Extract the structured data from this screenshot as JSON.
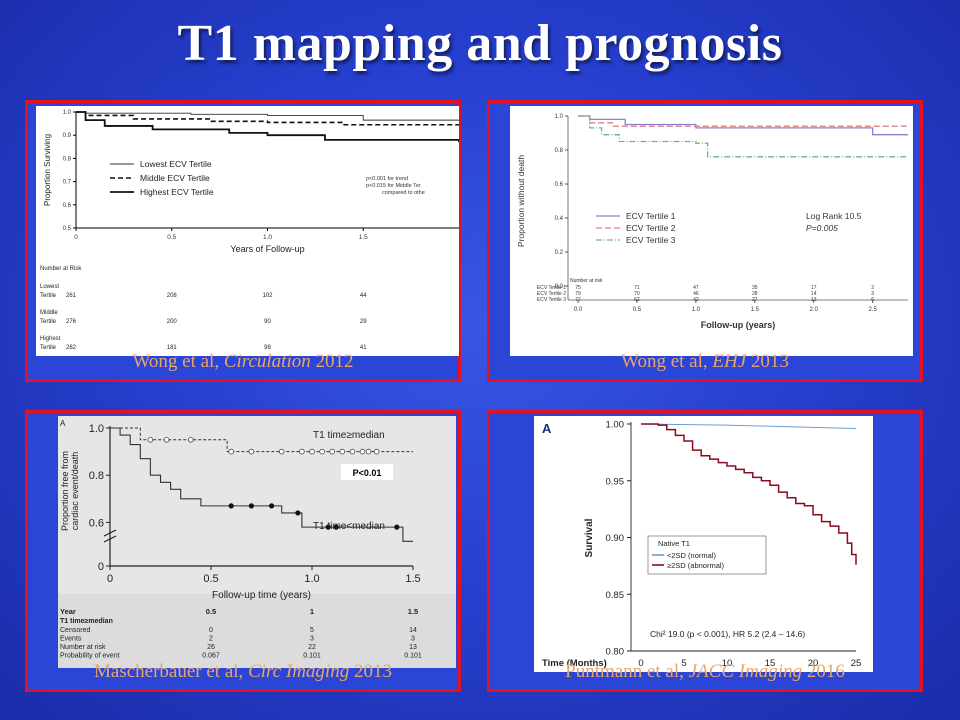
{
  "slide": {
    "title": "T1 mapping and prognosis"
  },
  "captions": [
    {
      "pre": "Wong et al, ",
      "journal": "Circulation",
      "post": " 2012"
    },
    {
      "pre": "Wong et al, ",
      "journal": "EHJ",
      "post": " 2013"
    },
    {
      "pre": "Mascherbauer  et al, ",
      "journal": "Circ Imaging",
      "post": " 2013"
    },
    {
      "pre": "Puntmann et al, ",
      "journal": "JACC Imaging",
      "post": " 2016"
    }
  ],
  "chart_data": [
    {
      "type": "line",
      "ylabel": "Proportion Surviving",
      "xlabel": "Years of Follow-up",
      "xlim": [
        0,
        2
      ],
      "ylim": [
        0.5,
        1.0
      ],
      "xticks": [
        "0",
        "0.5",
        "1.0",
        "1.5"
      ],
      "yticks": [
        "0.5",
        "0.6",
        "0.7",
        "0.8",
        "0.9",
        "1.0"
      ],
      "series": [
        {
          "name": "Lowest ECV Tertile",
          "style": "thin",
          "x": [
            0,
            0.05,
            0.6,
            1.0,
            1.5,
            2.0
          ],
          "y": [
            1.0,
            0.995,
            0.99,
            0.985,
            0.965,
            0.965
          ]
        },
        {
          "name": "Middle ECV Tertile",
          "style": "dashed",
          "x": [
            0,
            0.05,
            0.3,
            0.7,
            1.0,
            1.4,
            2.0
          ],
          "y": [
            1.0,
            0.985,
            0.97,
            0.96,
            0.955,
            0.945,
            0.945
          ]
        },
        {
          "name": "Highest ECV Tertile",
          "style": "thick",
          "x": [
            0,
            0.05,
            0.15,
            0.4,
            0.8,
            1.0,
            1.3,
            2.0
          ],
          "y": [
            1.0,
            0.965,
            0.94,
            0.925,
            0.91,
            0.9,
            0.88,
            0.87
          ]
        }
      ],
      "annotations": [
        "p<0.001 for trend",
        "p<0.015 for Middle Ter",
        "compared to othe"
      ],
      "risk_table": {
        "title": "Number at Risk",
        "rows": [
          {
            "label1": "Lowest",
            "label2": "Tertile",
            "values": [
              "261",
              "208",
              "102",
              "44"
            ]
          },
          {
            "label1": "Middle",
            "label2": "Tertile",
            "values": [
              "276",
              "200",
              "90",
              "29"
            ]
          },
          {
            "label1": "Highest",
            "label2": "Tertile",
            "values": [
              "262",
              "181",
              "98",
              "41"
            ]
          }
        ]
      }
    },
    {
      "type": "line",
      "ylabel": "Proportion without death",
      "xlabel": "Follow-up (years)",
      "xlim": [
        0,
        2.8
      ],
      "ylim": [
        0,
        1.0
      ],
      "xticks": [
        "0.0",
        "0.5",
        "1.0",
        "1.5",
        "2.0",
        "2.5"
      ],
      "yticks": [
        "0.0",
        "0.2",
        "0.4",
        "0.6",
        "0.8",
        "1.0"
      ],
      "series": [
        {
          "name": "ECV Tertile 1",
          "color": "#8a7fd0",
          "x": [
            0,
            0.1,
            0.4,
            1.0,
            2.5,
            2.8
          ],
          "y": [
            1.0,
            0.98,
            0.95,
            0.93,
            0.89,
            0.89
          ]
        },
        {
          "name": "ECV Tertile 2",
          "color": "#e08080",
          "x": [
            0,
            0.1,
            0.3,
            2.8
          ],
          "y": [
            1.0,
            0.96,
            0.94,
            0.94
          ]
        },
        {
          "name": "ECV Tertile 3",
          "color": "#70b090",
          "x": [
            0,
            0.1,
            0.2,
            0.35,
            1.0,
            1.1,
            2.8
          ],
          "y": [
            1.0,
            0.93,
            0.89,
            0.85,
            0.84,
            0.76,
            0.76
          ]
        }
      ],
      "annotations": [
        "Log Rank 10.5",
        "P=0.005"
      ],
      "risk_table": {
        "title": "Number at risk",
        "rows": [
          {
            "label": "ECV Tertile 1",
            "values": [
              "75",
              "71",
              "47",
              "35",
              "17",
              "2"
            ]
          },
          {
            "label": "ECV Tertile 2",
            "values": [
              "79",
              "70",
              "46",
              "28",
              "14",
              "3"
            ]
          },
          {
            "label": "ECV Tertile 3",
            "values": [
              "77",
              "62",
              "42",
              "27",
              "13",
              "6"
            ]
          }
        ]
      }
    },
    {
      "type": "line",
      "panel_label": "A",
      "ylabel": "Proportion free from cardiac event/death",
      "xlabel": "Follow-up time (years)",
      "xlim": [
        0,
        1.5
      ],
      "ylim": [
        0,
        1.0
      ],
      "xticks": [
        "0",
        "0.5",
        "1.0",
        "1.5"
      ],
      "yticks": [
        "0",
        "0.6",
        "0.8",
        "1.0"
      ],
      "series": [
        {
          "name": "T1 time≥median",
          "style": "dashed",
          "x": [
            0,
            0.1,
            0.15,
            0.55,
            0.58,
            1.5
          ],
          "y": [
            1.0,
            1.0,
            0.95,
            0.95,
            0.9,
            0.9
          ],
          "censored": [
            0.2,
            0.28,
            0.4,
            0.6,
            0.7,
            0.85,
            0.95,
            1.0,
            1.05,
            1.1,
            1.15,
            1.2,
            1.25,
            1.28,
            1.32
          ]
        },
        {
          "name": "T1 time<median",
          "style": "solid",
          "x": [
            0,
            0.05,
            0.1,
            0.15,
            0.2,
            0.25,
            0.3,
            0.35,
            0.45,
            0.85,
            0.95,
            1.45,
            1.5
          ],
          "y": [
            1.0,
            0.97,
            0.93,
            0.87,
            0.8,
            0.77,
            0.74,
            0.7,
            0.67,
            0.64,
            0.58,
            0.52,
            0.52
          ],
          "censored": [
            0.6,
            0.7,
            0.8,
            0.93,
            1.08,
            1.12,
            1.42
          ]
        }
      ],
      "annotations": [
        "P<0.01"
      ],
      "risk_table": {
        "header": [
          "Year",
          "0.5",
          "1",
          "1.5"
        ],
        "group": "T1 time≥median",
        "rows": [
          {
            "label": "Censored",
            "values": [
              "0",
              "5",
              "14"
            ]
          },
          {
            "label": "Events",
            "values": [
              "2",
              "3",
              "3"
            ]
          },
          {
            "label": "Number at risk",
            "values": [
              "26",
              "22",
              "13"
            ]
          },
          {
            "label": "Probability of event",
            "values": [
              "0.067",
              "0.101",
              "0.101"
            ]
          }
        ]
      }
    },
    {
      "type": "line",
      "panel_label": "A",
      "ylabel": "Survival",
      "xlabel": "Time (Months)",
      "xlim": [
        0,
        25
      ],
      "ylim": [
        0.8,
        1.0
      ],
      "xticks": [
        "0",
        "5",
        "10",
        "15",
        "20",
        "25"
      ],
      "yticks": [
        "0.80",
        "0.85",
        "0.90",
        "0.95",
        "1.00"
      ],
      "legend_title": "Native T1",
      "series": [
        {
          "name": "<2SD (normal)",
          "color": "#6a9bd8",
          "x": [
            0,
            10,
            20,
            25
          ],
          "y": [
            1.0,
            0.999,
            0.997,
            0.996
          ]
        },
        {
          "name": "≥2SD (abnormal)",
          "color": "#8b0a1e",
          "x": [
            0,
            1,
            2,
            3,
            4,
            5,
            6,
            7,
            8,
            9,
            10,
            11,
            12,
            13,
            14,
            15,
            16,
            17,
            18,
            19,
            20,
            21,
            22,
            23,
            24,
            24.5,
            25
          ],
          "y": [
            1.0,
            1.0,
            0.999,
            0.995,
            0.99,
            0.985,
            0.977,
            0.972,
            0.969,
            0.966,
            0.963,
            0.96,
            0.957,
            0.953,
            0.95,
            0.946,
            0.94,
            0.935,
            0.93,
            0.928,
            0.92,
            0.914,
            0.91,
            0.904,
            0.895,
            0.885,
            0.876
          ]
        }
      ],
      "annotations": [
        "Chi² 19.0 (p < 0.001), HR 5.2 (2.4 – 14.6)"
      ]
    }
  ]
}
